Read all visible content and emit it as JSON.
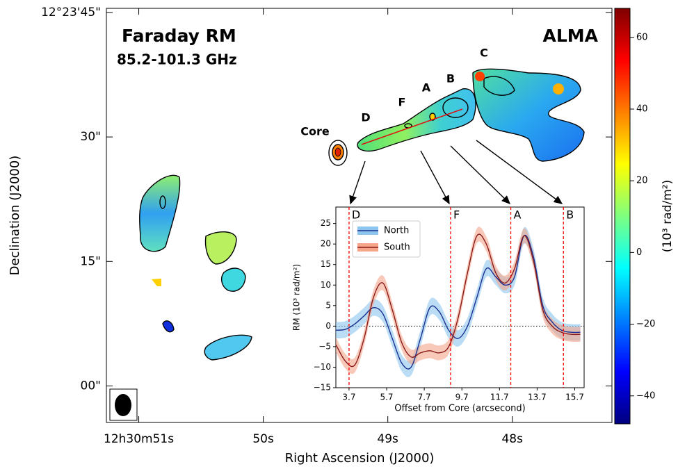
{
  "chart_data": [
    {
      "type": "image",
      "title": "Faraday RM",
      "subtitle": "85.2-101.3 GHz",
      "annotation": "ALMA",
      "region_labels": [
        "Core",
        "D",
        "F",
        "A",
        "B",
        "C"
      ],
      "xlabel": "Right Ascension (J2000)",
      "ylabel": "Declination (J2000)",
      "xlim": [
        51.26,
        47.2
      ],
      "xticks": [
        {
          "value": 51,
          "label": "12h30m51s"
        },
        {
          "value": 50,
          "label": "50s"
        },
        {
          "value": 49,
          "label": "49s"
        },
        {
          "value": 48,
          "label": "48s"
        }
      ],
      "ylim": [
        -4.4,
        45.5
      ],
      "yticks": [
        {
          "value": 45,
          "label": "12°23'45\""
        },
        {
          "value": 30,
          "label": "30\""
        },
        {
          "value": 15,
          "label": "15\""
        },
        {
          "value": 0,
          "label": "00\""
        }
      ],
      "colorbar": {
        "label": "(10³ rad/m²)",
        "lim": [
          -47.8,
          68.1
        ],
        "colormap": "jet",
        "ticks": [
          {
            "value": -40,
            "label": "−40"
          },
          {
            "value": -20,
            "label": "−20"
          },
          0,
          20,
          40,
          60
        ]
      }
    },
    {
      "type": "line",
      "xlabel": "Offset from Core (arcsecond)",
      "ylabel": "RM (10³ rad/m²)",
      "xlim": [
        3.0,
        16.2
      ],
      "xticks": [
        3.7,
        5.7,
        7.7,
        9.7,
        11.7,
        13.7,
        15.7
      ],
      "ylim": [
        -15,
        29
      ],
      "yticks": [
        {
          "value": -15,
          "label": "−15"
        },
        {
          "value": -10,
          "label": "−10"
        },
        {
          "value": -5,
          "label": "−5"
        },
        0,
        5,
        10,
        15,
        20,
        25
      ],
      "reference_line": 0,
      "legend": "upper left",
      "markers": [
        {
          "x": 3.7,
          "label": "D"
        },
        {
          "x": 9.1,
          "label": "F"
        },
        {
          "x": 12.3,
          "label": "A"
        },
        {
          "x": 15.1,
          "label": "B"
        }
      ],
      "x": [
        3.0,
        3.5,
        4.0,
        4.5,
        5.0,
        5.5,
        6.0,
        6.5,
        7.0,
        7.5,
        8.0,
        8.5,
        9.0,
        9.5,
        10.0,
        10.5,
        11.0,
        11.5,
        12.0,
        12.5,
        13.0,
        13.5,
        14.0,
        14.5,
        15.0,
        15.5,
        16.0
      ],
      "series": [
        {
          "name": "North",
          "color": "#1a2f8f",
          "band_color": "#8ec5ee",
          "error": 2,
          "values": [
            -1,
            -0.8,
            0.5,
            2.5,
            4.5,
            3,
            -3,
            -9,
            -10,
            -3,
            4.5,
            3.5,
            -1,
            -3,
            0,
            7,
            14,
            12,
            10,
            12,
            22,
            17,
            5,
            1,
            -1,
            -1.5,
            -1.5
          ]
        },
        {
          "name": "South",
          "color": "#8b1a1a",
          "band_color": "#f4a58a",
          "error": 1.8,
          "values": [
            -4.5,
            -8.5,
            -9.5,
            -3,
            7,
            10.5,
            4,
            -4,
            -7.5,
            -6.5,
            -6,
            -6.5,
            -5,
            2,
            13,
            22,
            20,
            13,
            10.5,
            14,
            22,
            16,
            4,
            0,
            -1.5,
            -2,
            -2
          ]
        }
      ]
    }
  ]
}
